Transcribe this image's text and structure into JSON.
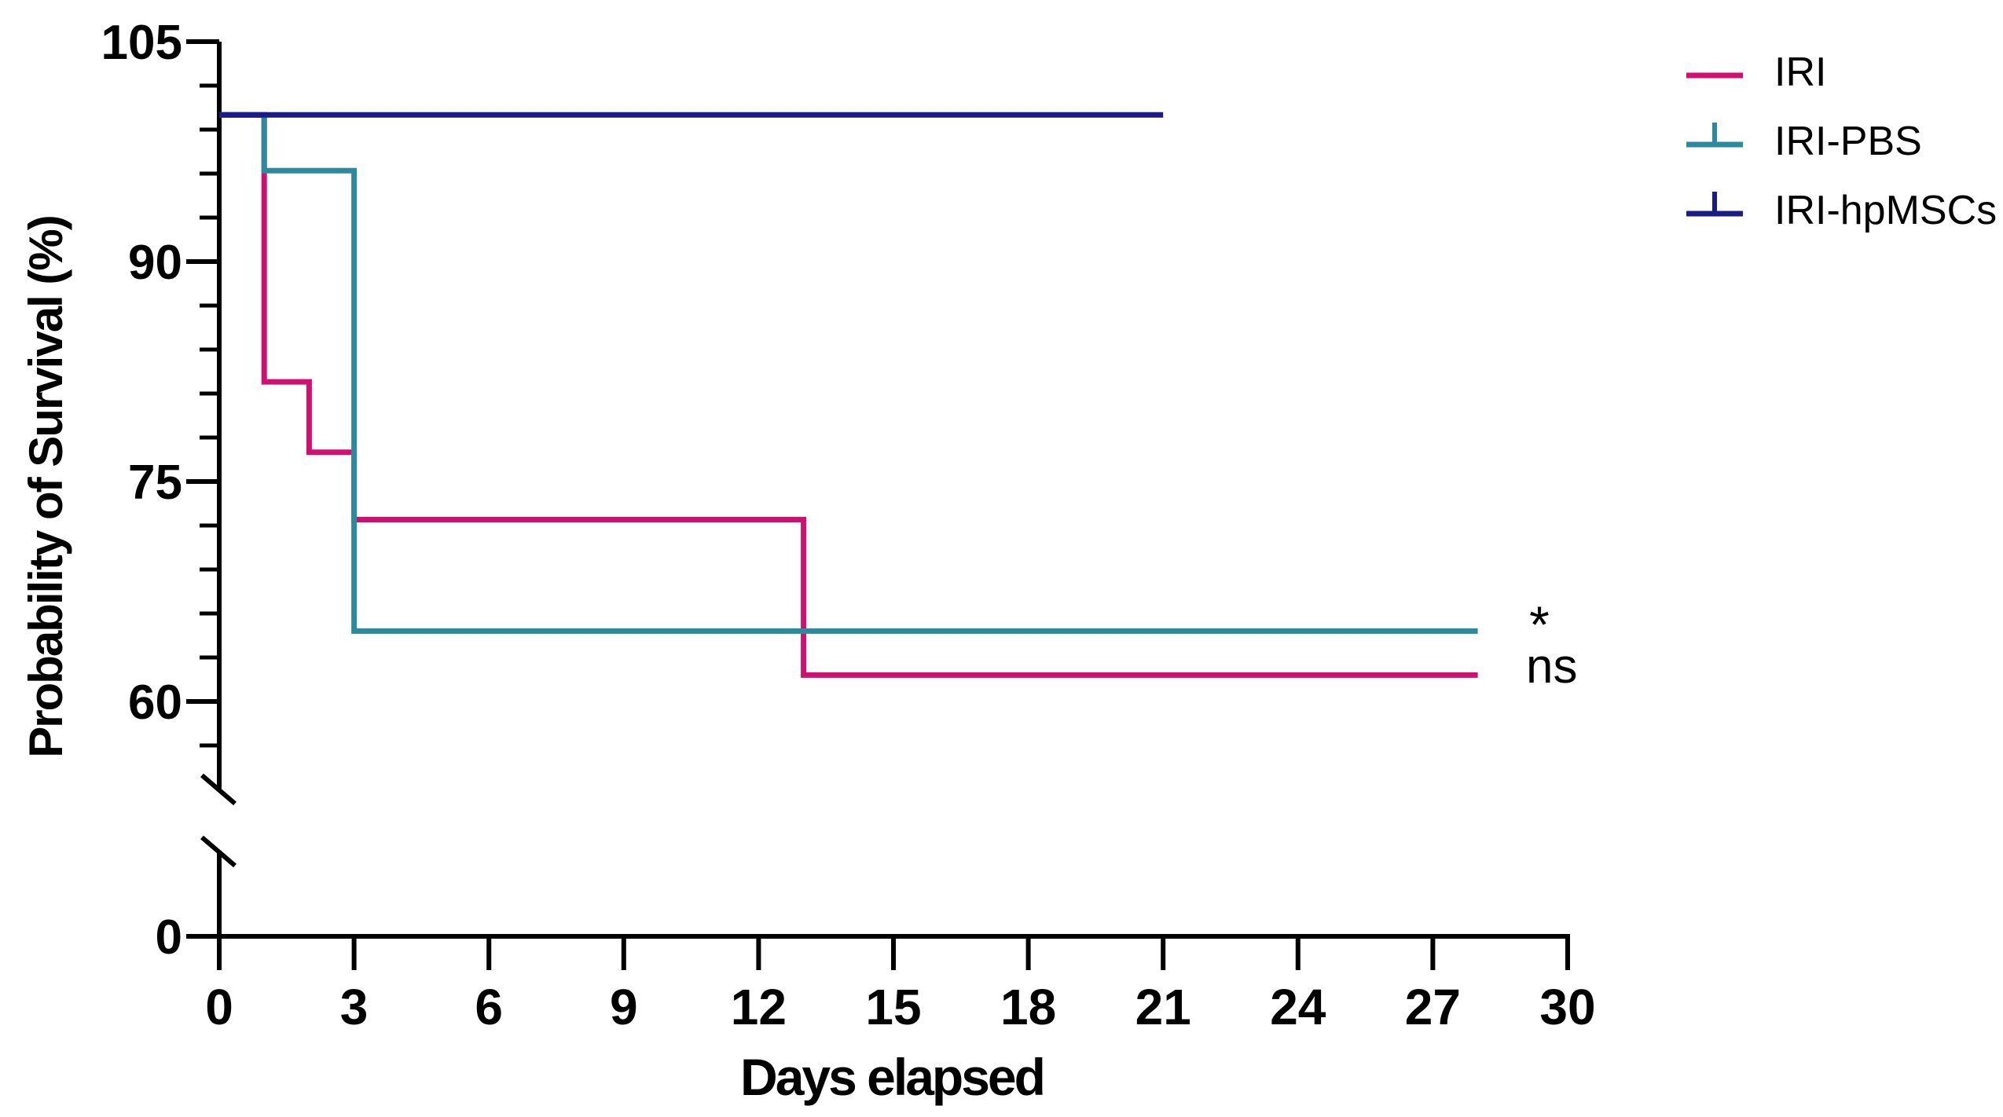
{
  "chart_data": {
    "type": "line",
    "chart_style": "kaplan-meier-survival-step",
    "title": "",
    "xlabel": "Days elapsed",
    "ylabel": "Probability of Survival (%)",
    "xlim": [
      0,
      30
    ],
    "x_ticks": [
      0,
      3,
      6,
      9,
      12,
      15,
      18,
      21,
      24,
      27,
      30
    ],
    "y_axis": {
      "major_ticks": [
        105,
        90,
        75,
        60,
        0
      ],
      "minor_ticks": [
        102,
        99,
        96,
        93,
        87,
        84,
        81,
        78,
        72,
        69,
        66,
        63,
        57
      ],
      "break_between": [
        57,
        0
      ]
    },
    "grid": false,
    "legend_position": "top-right",
    "axis_color": "#000000",
    "series": [
      {
        "name": "IRI",
        "color": "#d01070",
        "censor_tick_in_legend": false,
        "significance": "ns",
        "points": [
          [
            0,
            100
          ],
          [
            1,
            100
          ],
          [
            1,
            81.8
          ],
          [
            2,
            81.8
          ],
          [
            2,
            77
          ],
          [
            3,
            77
          ],
          [
            3,
            72.4
          ],
          [
            13,
            72.4
          ],
          [
            13,
            61.8
          ],
          [
            28,
            61.8
          ]
        ]
      },
      {
        "name": "IRI-PBS",
        "color": "#2b8a9e",
        "censor_tick_in_legend": true,
        "significance": "*",
        "points": [
          [
            0,
            100
          ],
          [
            1,
            100
          ],
          [
            1,
            96.2
          ],
          [
            3,
            96.2
          ],
          [
            3,
            64.8
          ],
          [
            28,
            64.8
          ]
        ]
      },
      {
        "name": "IRI-hpMSCs",
        "color": "#1b1b87",
        "censor_tick_in_legend": true,
        "significance": "",
        "points": [
          [
            0,
            100
          ],
          [
            21,
            100
          ]
        ]
      }
    ]
  }
}
